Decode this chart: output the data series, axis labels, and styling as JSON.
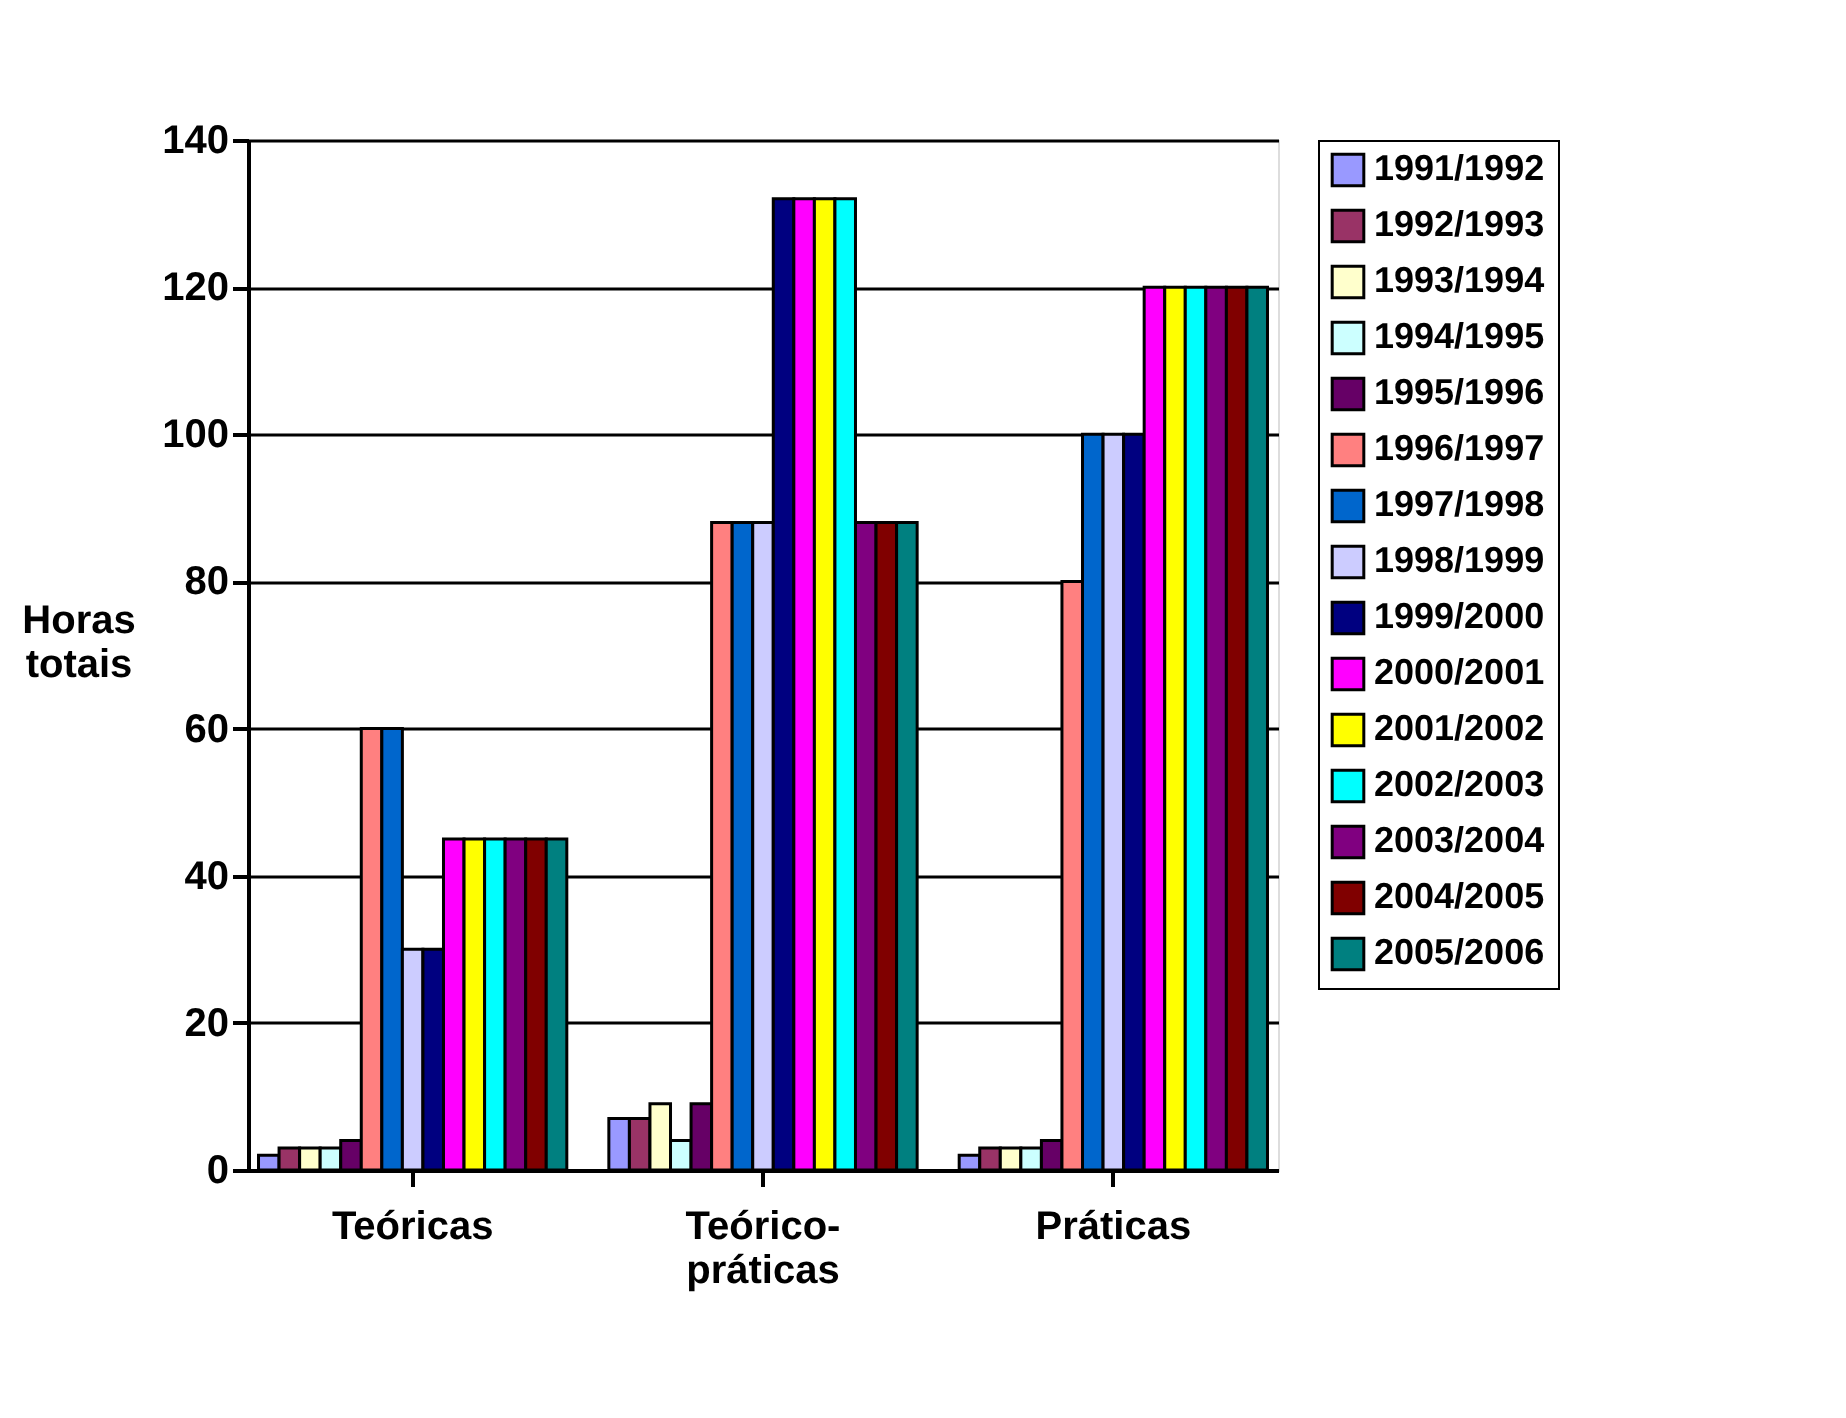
{
  "chart_data": {
    "type": "bar",
    "ylabel": "Horas totais",
    "categories": [
      "Teóricas",
      "Teórico-práticas",
      "Práticas"
    ],
    "ylim": [
      0,
      140
    ],
    "yticks": [
      0,
      20,
      40,
      60,
      80,
      100,
      120,
      140
    ],
    "grid": "y",
    "legend": "right",
    "series": [
      {
        "name": "1991/1992",
        "color": "#9999ff",
        "values": [
          2,
          7,
          2
        ]
      },
      {
        "name": "1992/1993",
        "color": "#993366",
        "values": [
          3,
          7,
          3
        ]
      },
      {
        "name": "1993/1994",
        "color": "#ffffcc",
        "values": [
          3,
          9,
          3
        ]
      },
      {
        "name": "1994/1995",
        "color": "#ccffff",
        "values": [
          3,
          4,
          3
        ]
      },
      {
        "name": "1995/1996",
        "color": "#660066",
        "values": [
          4,
          9,
          4
        ]
      },
      {
        "name": "1996/1997",
        "color": "#ff8080",
        "values": [
          60,
          88,
          80
        ]
      },
      {
        "name": "1997/1998",
        "color": "#0066cc",
        "values": [
          60,
          88,
          100
        ]
      },
      {
        "name": "1998/1999",
        "color": "#ccccff",
        "values": [
          30,
          88,
          100
        ]
      },
      {
        "name": "1999/2000",
        "color": "#000080",
        "values": [
          30,
          132,
          100
        ]
      },
      {
        "name": "2000/2001",
        "color": "#ff00ff",
        "values": [
          45,
          132,
          120
        ]
      },
      {
        "name": "2001/2002",
        "color": "#ffff00",
        "values": [
          45,
          132,
          120
        ]
      },
      {
        "name": "2002/2003",
        "color": "#00ffff",
        "values": [
          45,
          132,
          120
        ]
      },
      {
        "name": "2003/2004",
        "color": "#800080",
        "values": [
          45,
          88,
          120
        ]
      },
      {
        "name": "2004/2005",
        "color": "#800000",
        "values": [
          45,
          88,
          120
        ]
      },
      {
        "name": "2005/2006",
        "color": "#008080",
        "values": [
          45,
          88,
          120
        ]
      }
    ]
  }
}
